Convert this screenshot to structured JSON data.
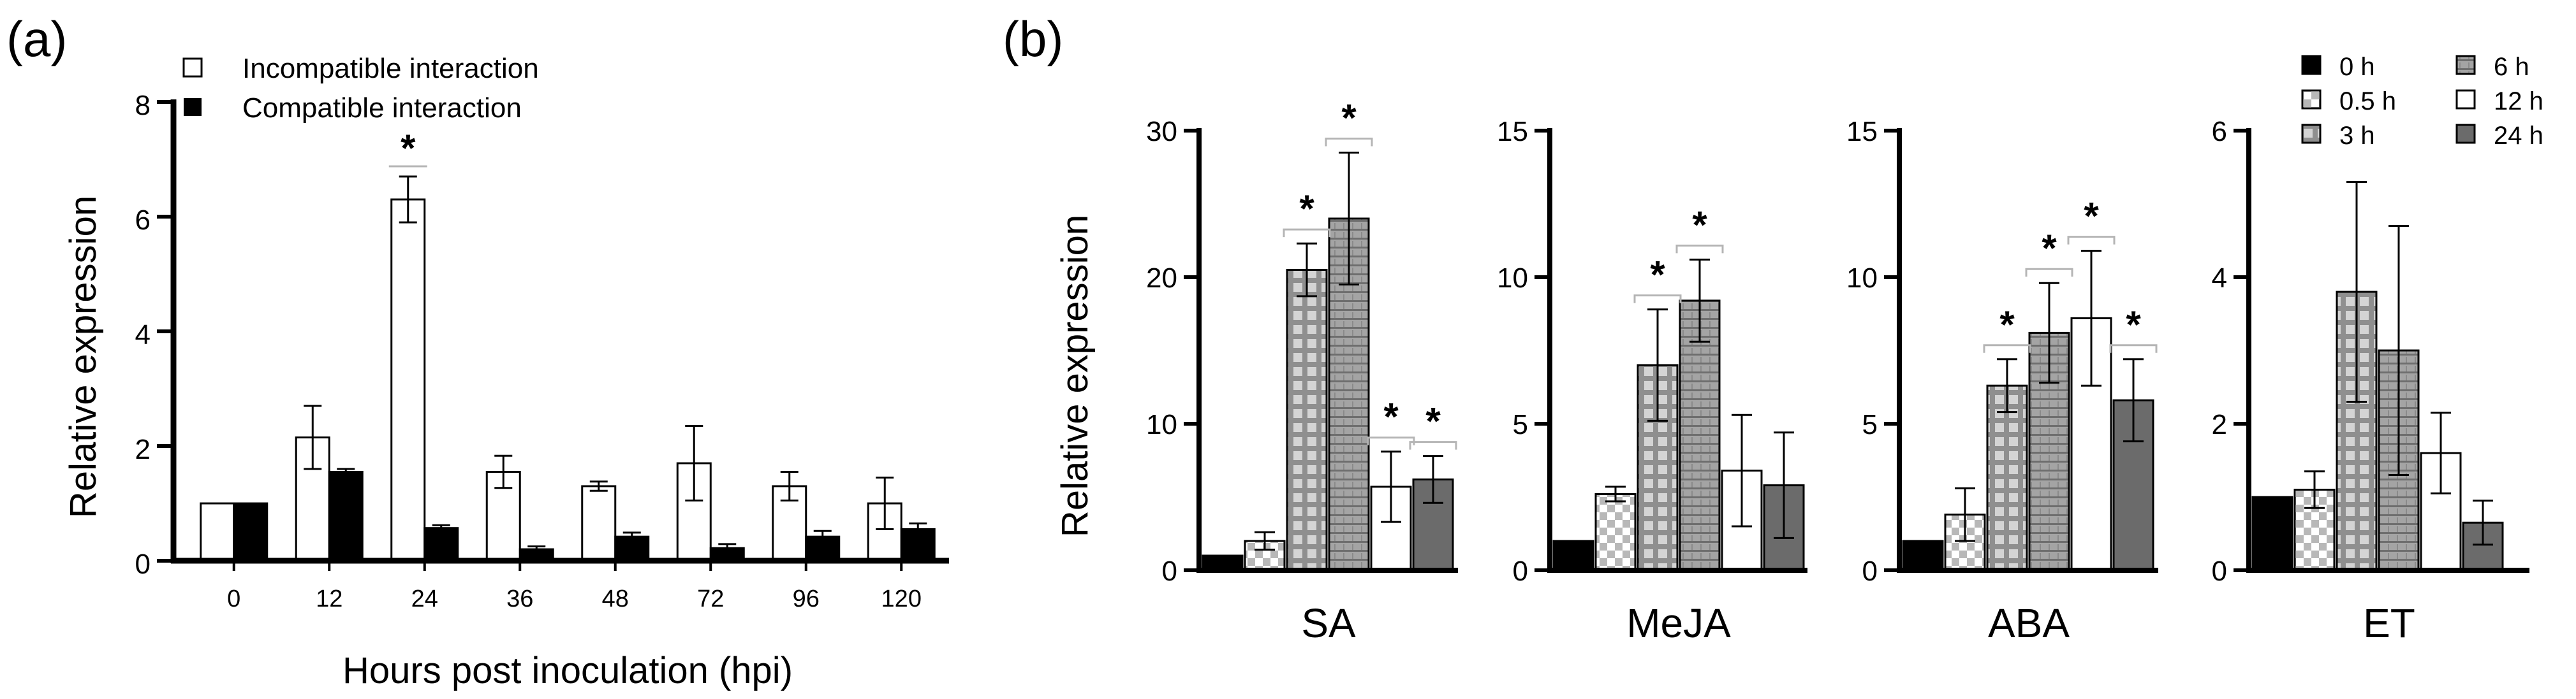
{
  "colors": {
    "axis": "#000000",
    "black": "#000000",
    "white": "#ffffff",
    "gray6h": "#9a9a9a",
    "dark24h": "#6b6b6b",
    "bracket": "#b5b5b5"
  },
  "chart_data": [
    {
      "type": "bar",
      "panel_label": "(a)",
      "title": "",
      "xlabel": "Hours post inoculation (hpi)",
      "ylabel": "Relative expression",
      "categories": [
        "0",
        "12",
        "24",
        "36",
        "48",
        "72",
        "96",
        "120"
      ],
      "ylim": [
        0,
        8
      ],
      "yticks": [
        "0",
        "2",
        "4",
        "6",
        "8"
      ],
      "legend_position": "top-left",
      "series": [
        {
          "name": "Incompatible interaction",
          "fill": "white",
          "values": [
            1.0,
            2.15,
            6.3,
            1.55,
            1.3,
            1.7,
            1.3,
            1.0
          ],
          "errors": [
            0.0,
            0.55,
            0.4,
            0.28,
            0.08,
            0.65,
            0.25,
            0.45
          ]
        },
        {
          "name": "Compatible interaction",
          "fill": "black",
          "values": [
            1.0,
            1.55,
            0.57,
            0.2,
            0.42,
            0.22,
            0.42,
            0.55
          ],
          "errors": [
            0.0,
            0.05,
            0.05,
            0.05,
            0.07,
            0.07,
            0.1,
            0.1
          ]
        }
      ],
      "annotations": [
        {
          "text": "*",
          "category": "24"
        }
      ]
    },
    {
      "type": "bar",
      "panel_label": "(b)",
      "title": "",
      "xlabel": "",
      "ylabel": "Relative expression",
      "legend_position": "top-right",
      "legend": [
        "0 h",
        "0.5 h",
        "3 h",
        "6 h",
        "12 h",
        "24 h"
      ],
      "series_names": [
        "0 h",
        "0.5 h",
        "3 h",
        "6 h",
        "12 h",
        "24 h"
      ],
      "groups": [
        {
          "category": "SA",
          "ylim": [
            0,
            30
          ],
          "yticks": [
            "0",
            "10",
            "20",
            "30"
          ],
          "values": [
            1.0,
            2.0,
            20.5,
            24.0,
            5.7,
            6.2
          ],
          "errors": [
            0.0,
            0.6,
            1.8,
            4.5,
            2.4,
            1.6
          ],
          "stars": [
            "3 h",
            "6 h",
            "12 h",
            "24 h"
          ]
        },
        {
          "category": "MeJA",
          "ylim": [
            0,
            15
          ],
          "yticks": [
            "0",
            "5",
            "10",
            "15"
          ],
          "values": [
            1.0,
            2.6,
            7.0,
            9.2,
            3.4,
            2.9
          ],
          "errors": [
            0.0,
            0.25,
            1.9,
            1.4,
            1.9,
            1.8
          ],
          "stars": [
            "3 h",
            "6 h"
          ]
        },
        {
          "category": "ABA",
          "ylim": [
            0,
            15
          ],
          "yticks": [
            "0",
            "5",
            "10",
            "15"
          ],
          "values": [
            1.0,
            1.9,
            6.3,
            8.1,
            8.6,
            5.8
          ],
          "errors": [
            0.0,
            0.9,
            0.9,
            1.7,
            2.3,
            1.4
          ],
          "stars": [
            "3 h",
            "6 h",
            "12 h",
            "24 h"
          ]
        },
        {
          "category": "ET",
          "ylim": [
            0,
            6
          ],
          "yticks": [
            "0",
            "2",
            "4",
            "6"
          ],
          "values": [
            1.0,
            1.1,
            3.8,
            3.0,
            1.6,
            0.65
          ],
          "errors": [
            0.0,
            0.25,
            1.5,
            1.7,
            0.55,
            0.3
          ],
          "stars": []
        }
      ]
    }
  ]
}
